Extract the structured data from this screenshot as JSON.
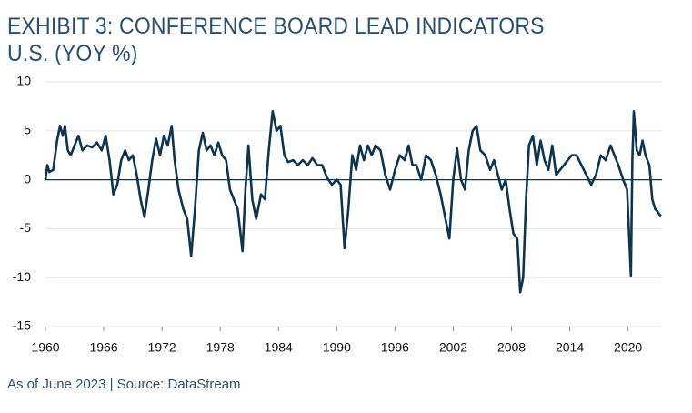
{
  "chart_data": {
    "type": "line",
    "title": "EXHIBIT 3: CONFERENCE BOARD LEAD INDICATORS U.S. (YOY %)",
    "note": "As of June 2023 | Source: DataStream",
    "xlim": [
      1960,
      2023.5
    ],
    "xticks": [
      1960,
      1966,
      1972,
      1978,
      1984,
      1990,
      1996,
      2002,
      2008,
      2014,
      2020
    ],
    "ylim": [
      -15,
      10
    ],
    "yticks": [
      10,
      5,
      0,
      -5,
      -10,
      -15
    ],
    "grid": true,
    "x": [
      1960.0,
      1960.2,
      1960.4,
      1960.8,
      1961.2,
      1961.5,
      1961.8,
      1962.0,
      1962.3,
      1962.6,
      1963.0,
      1963.4,
      1963.8,
      1964.3,
      1964.8,
      1965.3,
      1965.8,
      1966.2,
      1966.6,
      1967.0,
      1967.4,
      1967.8,
      1968.2,
      1968.6,
      1969.0,
      1969.4,
      1969.8,
      1970.2,
      1970.6,
      1971.0,
      1971.4,
      1971.8,
      1972.2,
      1972.6,
      1973.0,
      1973.3,
      1973.7,
      1974.2,
      1974.6,
      1975.0,
      1975.4,
      1975.8,
      1976.2,
      1976.6,
      1977.0,
      1977.4,
      1977.8,
      1978.2,
      1978.6,
      1979.0,
      1979.4,
      1979.8,
      1980.3,
      1980.6,
      1980.9,
      1981.3,
      1981.7,
      1982.2,
      1982.6,
      1983.0,
      1983.4,
      1983.8,
      1984.2,
      1984.6,
      1985.0,
      1985.5,
      1986.0,
      1986.5,
      1987.0,
      1987.5,
      1988.0,
      1988.5,
      1989.0,
      1989.5,
      1990.0,
      1990.4,
      1990.8,
      1991.2,
      1991.6,
      1992.0,
      1992.4,
      1992.8,
      1993.2,
      1993.6,
      1994.0,
      1994.5,
      1995.0,
      1995.5,
      1996.0,
      1996.5,
      1997.0,
      1997.4,
      1997.8,
      1998.2,
      1998.7,
      1999.2,
      1999.7,
      2000.2,
      2000.7,
      2001.2,
      2001.6,
      2002.0,
      2002.4,
      2002.8,
      2003.2,
      2003.6,
      2004.0,
      2004.4,
      2004.8,
      2005.3,
      2005.8,
      2006.2,
      2006.6,
      2007.0,
      2007.4,
      2007.8,
      2008.2,
      2008.6,
      2008.9,
      2009.2,
      2009.5,
      2009.8,
      2010.2,
      2010.6,
      2011.0,
      2011.4,
      2011.8,
      2012.2,
      2012.6,
      2013.0,
      2013.4,
      2013.8,
      2014.2,
      2014.7,
      2015.2,
      2015.7,
      2016.2,
      2016.7,
      2017.2,
      2017.7,
      2018.2,
      2018.6,
      2019.0,
      2019.5,
      2019.9,
      2020.3,
      2020.45,
      2020.6,
      2020.9,
      2021.2,
      2021.5,
      2021.8,
      2022.2,
      2022.5,
      2022.8,
      2023.0,
      2023.2,
      2023.4
    ],
    "series": [
      {
        "color": "#0d3550",
        "values": [
          0,
          1.5,
          0.8,
          1,
          4,
          5.5,
          4.5,
          5.5,
          3,
          2.5,
          3.5,
          4.5,
          3,
          3.5,
          3.3,
          3.8,
          3,
          4.5,
          2,
          -1.5,
          -0.5,
          2,
          3,
          2,
          2.5,
          0.5,
          -2,
          -3.8,
          -1,
          2,
          4.2,
          2.5,
          4.5,
          3.5,
          5.5,
          2,
          -1,
          -3,
          -4,
          -7.8,
          -3,
          3,
          4.8,
          3,
          3.5,
          2.5,
          3.8,
          2.5,
          2,
          -1,
          -2,
          -3,
          -7.3,
          -1,
          3.5,
          -2,
          -4,
          -1.5,
          -2,
          3,
          7,
          5,
          5.5,
          2.5,
          1.8,
          2,
          1.5,
          2,
          1.5,
          2.2,
          1.5,
          1.5,
          0.2,
          -0.5,
          0,
          -0.5,
          -7,
          -3,
          2.5,
          1,
          3.5,
          2,
          3.5,
          2.5,
          3.5,
          3,
          0.5,
          -1,
          1,
          2.5,
          2,
          3.5,
          1.5,
          1.5,
          0,
          2.5,
          2,
          0.5,
          -1.5,
          -4,
          -6,
          0,
          3.2,
          0,
          -1,
          3,
          5,
          5.5,
          3,
          2.5,
          1,
          2,
          0.5,
          -1,
          0,
          -3,
          -5.5,
          -6,
          -11.5,
          -10,
          -2,
          3.5,
          4.5,
          1.5,
          4,
          2,
          1,
          3.5,
          0.5,
          1,
          1.5,
          2,
          2.5,
          2.5,
          1.5,
          0.5,
          -0.5,
          0.5,
          2.5,
          2,
          3.5,
          2.5,
          1.5,
          0,
          -1,
          -9.8,
          2,
          7,
          3,
          2.5,
          4,
          2.5,
          1.5,
          -2,
          -3,
          -3.2,
          -3.5,
          -3.7
        ]
      }
    ]
  }
}
